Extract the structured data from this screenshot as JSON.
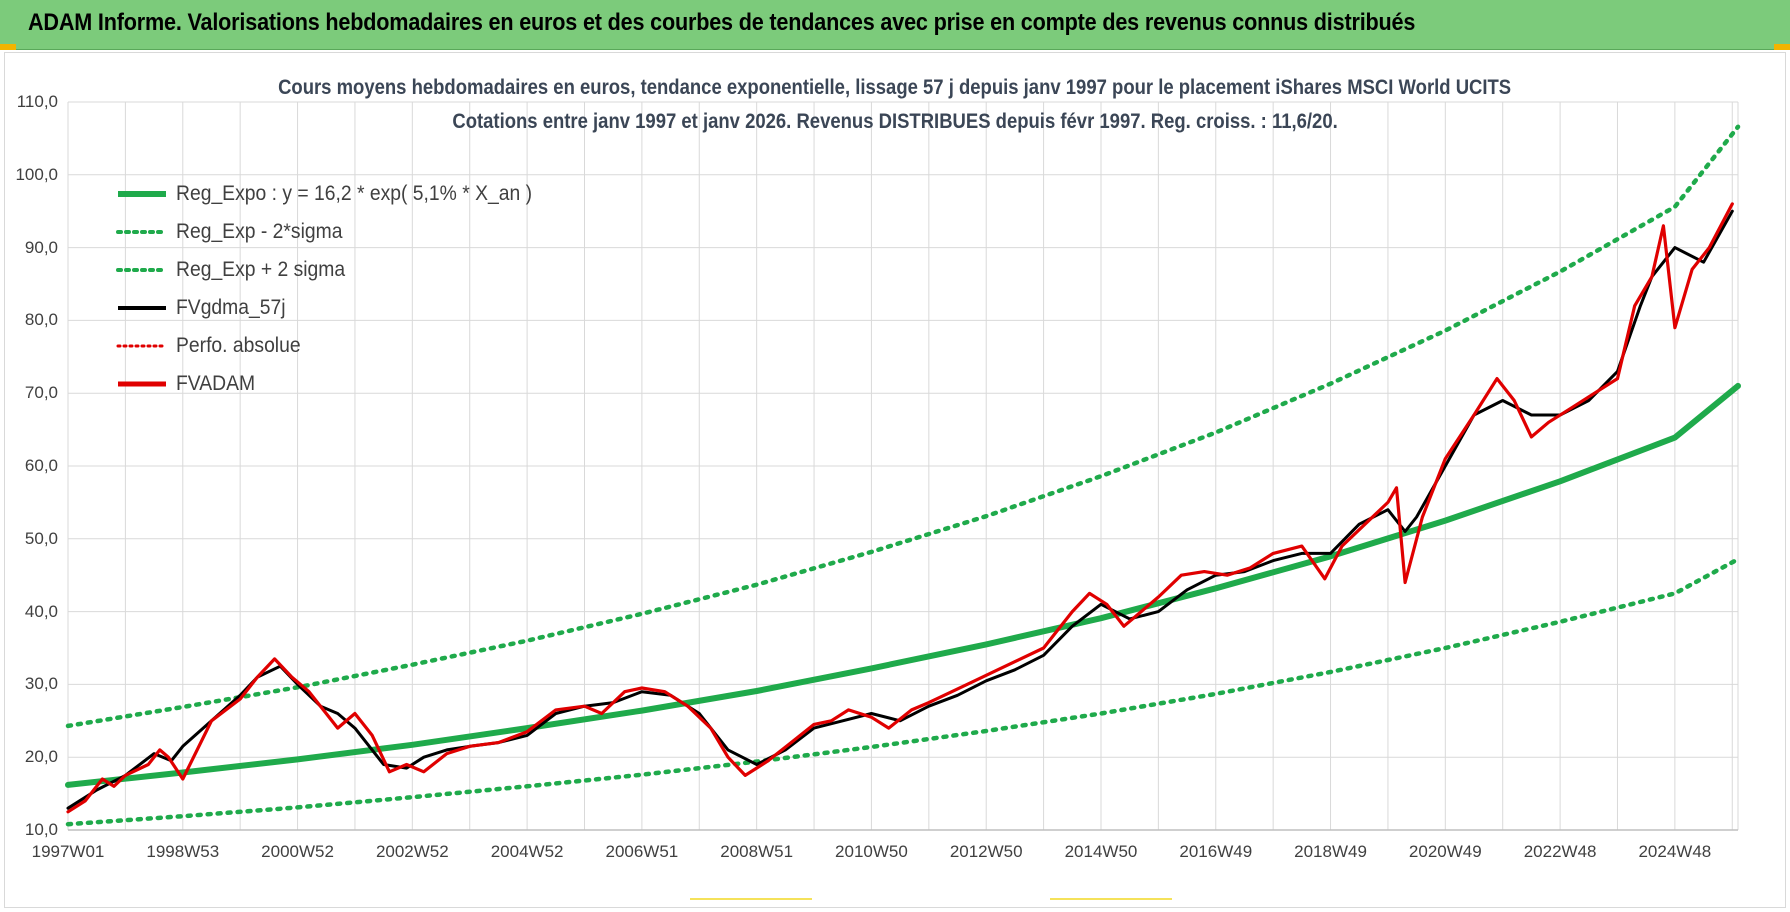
{
  "header": {
    "title": "ADAM Informe. Valorisations hebdomadaires en euros et des courbes de tendances avec prise en compte des revenus connus distribués"
  },
  "colors": {
    "banner": "#7ccb7b",
    "trend_green": "#1faa4b",
    "price_red": "#e00000",
    "smooth_black": "#000000",
    "grid": "#d9d9d9"
  },
  "chart_data": {
    "type": "line",
    "title": "Cours moyens hebdomadaires en euros, tendance exponentielle, lissage 57 j depuis janv 1997 pour le placement iShares MSCI World UCITS",
    "subtitle": "Cotations entre janv 1997 et janv 2026. Revenus DISTRIBUES depuis févr 1997. Reg. croiss. : 11,6/20.",
    "xlabel": "",
    "ylabel": "",
    "ylim": [
      10,
      110
    ],
    "xlim": [
      1997.0,
      2026.1
    ],
    "grid": true,
    "legend_position": "top-left",
    "y_ticks": [
      "10,0",
      "20,0",
      "30,0",
      "40,0",
      "50,0",
      "60,0",
      "70,0",
      "80,0",
      "90,0",
      "100,0",
      "110,0"
    ],
    "x_tick_labels": [
      "1997W01",
      "1998W53",
      "2000W52",
      "2002W52",
      "2004W52",
      "2006W51",
      "2008W51",
      "2010W50",
      "2012W50",
      "2014W50",
      "2016W49",
      "2018W49",
      "2020W49",
      "2022W48",
      "2024W48"
    ],
    "x_tick_years": [
      1997.0,
      1999.0,
      2001.0,
      2003.0,
      2005.0,
      2007.0,
      2009.0,
      2011.0,
      2013.0,
      2015.0,
      2017.0,
      2019.0,
      2021.0,
      2023.0,
      2025.0
    ],
    "series": [
      {
        "name": "Reg_Expo : y = 16,2 * exp( 5,1% *  X_an )",
        "style": "solid",
        "color": "#1faa4b",
        "x": [
          1997.0,
          1999.0,
          2001.0,
          2003.0,
          2005.0,
          2007.0,
          2009.0,
          2011.0,
          2013.0,
          2015.0,
          2017.0,
          2019.0,
          2021.0,
          2023.0,
          2025.0,
          2026.1
        ],
        "y": [
          16.2,
          17.9,
          19.7,
          21.7,
          24.0,
          26.4,
          29.1,
          32.2,
          35.5,
          39.1,
          43.2,
          47.6,
          52.5,
          57.9,
          63.9,
          71.0
        ]
      },
      {
        "name": "Reg_Exp - 2*sigma",
        "style": "dotted",
        "color": "#1faa4b",
        "x": [
          1997.0,
          1999.0,
          2001.0,
          2003.0,
          2005.0,
          2007.0,
          2009.0,
          2011.0,
          2013.0,
          2015.0,
          2017.0,
          2019.0,
          2021.0,
          2023.0,
          2025.0,
          2026.1
        ],
        "y": [
          10.8,
          11.9,
          13.1,
          14.5,
          16.0,
          17.6,
          19.4,
          21.4,
          23.6,
          26.0,
          28.7,
          31.7,
          35.0,
          38.6,
          42.5,
          47.2
        ]
      },
      {
        "name": "Reg_Exp + 2 sigma",
        "style": "dotted",
        "color": "#1faa4b",
        "x": [
          1997.0,
          1999.0,
          2001.0,
          2003.0,
          2005.0,
          2007.0,
          2009.0,
          2011.0,
          2013.0,
          2015.0,
          2017.0,
          2019.0,
          2021.0,
          2023.0,
          2025.0,
          2026.1
        ],
        "y": [
          24.3,
          26.9,
          29.6,
          32.7,
          36.0,
          39.7,
          43.7,
          48.2,
          53.1,
          58.6,
          64.6,
          71.3,
          78.6,
          86.7,
          95.6,
          106.6
        ]
      },
      {
        "name": "FVgdma_57j",
        "style": "solid",
        "color": "#000000",
        "x": [
          1997.0,
          1997.5,
          1998.0,
          1998.5,
          1998.8,
          1999.0,
          1999.5,
          2000.0,
          2000.3,
          2000.7,
          2001.0,
          2001.4,
          2001.7,
          2002.0,
          2002.5,
          2002.9,
          2003.2,
          2003.6,
          2004.0,
          2004.5,
          2005.0,
          2005.5,
          2006.0,
          2006.5,
          2007.0,
          2007.5,
          2008.0,
          2008.5,
          2009.0,
          2009.5,
          2010.0,
          2010.5,
          2011.0,
          2011.5,
          2012.0,
          2012.5,
          2013.0,
          2013.5,
          2014.0,
          2014.5,
          2015.0,
          2015.5,
          2016.0,
          2016.5,
          2017.0,
          2017.5,
          2018.0,
          2018.5,
          2019.0,
          2019.5,
          2020.0,
          2020.3,
          2020.5,
          2021.0,
          2021.5,
          2022.0,
          2022.5,
          2023.0,
          2023.5,
          2024.0,
          2024.4,
          2024.6,
          2025.0,
          2025.5,
          2026.0
        ],
        "y": [
          13.0,
          15.5,
          17.5,
          20.5,
          19.5,
          21.5,
          25.0,
          28.5,
          31.0,
          32.5,
          30.0,
          27.0,
          26.0,
          24.0,
          19.0,
          18.5,
          20.0,
          21.0,
          21.5,
          22.0,
          23.0,
          26.0,
          27.0,
          27.5,
          29.0,
          28.5,
          26.0,
          21.0,
          19.0,
          21.0,
          24.0,
          25.0,
          26.0,
          25.0,
          27.0,
          28.5,
          30.5,
          32.0,
          34.0,
          38.0,
          41.0,
          39.0,
          40.0,
          43.0,
          45.0,
          45.5,
          47.0,
          48.0,
          48.0,
          52.0,
          54.0,
          51.0,
          53.0,
          60.0,
          67.0,
          69.0,
          67.0,
          67.0,
          69.0,
          73.0,
          82.0,
          86.0,
          90.0,
          88.0,
          95.0
        ]
      },
      {
        "name": "Perfo. absolue",
        "style": "dotted",
        "color": "#e00000",
        "x": [],
        "y": []
      },
      {
        "name": "FVADAM",
        "style": "solid",
        "color": "#e00000",
        "x": [
          1997.0,
          1997.3,
          1997.6,
          1997.8,
          1998.0,
          1998.4,
          1998.6,
          1998.75,
          1999.0,
          1999.5,
          2000.0,
          2000.3,
          2000.6,
          2000.9,
          2001.2,
          2001.5,
          2001.7,
          2002.0,
          2002.3,
          2002.6,
          2002.9,
          2003.2,
          2003.6,
          2004.0,
          2004.5,
          2005.0,
          2005.5,
          2006.0,
          2006.3,
          2006.7,
          2007.0,
          2007.4,
          2007.8,
          2008.2,
          2008.5,
          2008.8,
          2009.2,
          2009.6,
          2010.0,
          2010.3,
          2010.6,
          2011.0,
          2011.3,
          2011.7,
          2012.0,
          2012.4,
          2012.8,
          2013.2,
          2013.6,
          2014.0,
          2014.5,
          2014.8,
          2015.1,
          2015.4,
          2015.7,
          2016.0,
          2016.4,
          2016.8,
          2017.2,
          2017.6,
          2018.0,
          2018.5,
          2018.9,
          2019.2,
          2019.6,
          2020.0,
          2020.15,
          2020.3,
          2020.6,
          2021.0,
          2021.5,
          2021.9,
          2022.2,
          2022.5,
          2022.8,
          2023.2,
          2023.6,
          2024.0,
          2024.3,
          2024.6,
          2024.8,
          2025.0,
          2025.3,
          2025.6,
          2026.0
        ],
        "y": [
          12.5,
          14.0,
          17.0,
          16.0,
          17.5,
          19.0,
          21.0,
          20.0,
          17.0,
          25.0,
          28.0,
          31.0,
          33.5,
          31.0,
          29.0,
          26.0,
          24.0,
          26.0,
          23.0,
          18.0,
          19.0,
          18.0,
          20.5,
          21.5,
          22.0,
          23.5,
          26.5,
          27.0,
          26.0,
          29.0,
          29.5,
          29.0,
          27.0,
          24.0,
          20.0,
          17.5,
          19.5,
          22.0,
          24.5,
          25.0,
          26.5,
          25.5,
          24.0,
          26.5,
          27.5,
          29.0,
          30.5,
          32.0,
          33.5,
          35.0,
          40.0,
          42.5,
          41.0,
          38.0,
          40.0,
          42.0,
          45.0,
          45.5,
          45.0,
          46.0,
          48.0,
          49.0,
          44.5,
          49.0,
          52.0,
          55.0,
          57.0,
          44.0,
          53.0,
          61.0,
          67.0,
          72.0,
          69.0,
          64.0,
          66.0,
          68.0,
          70.0,
          72.0,
          82.0,
          86.0,
          93.0,
          79.0,
          87.0,
          90.0,
          96.0
        ]
      }
    ]
  }
}
